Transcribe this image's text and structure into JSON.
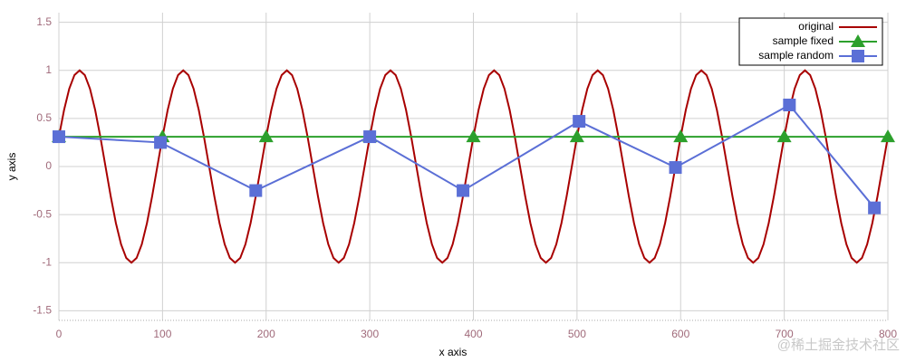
{
  "chart_data": {
    "type": "line",
    "x_label": "x axis",
    "y_label": "y axis",
    "xlim": [
      0,
      800
    ],
    "xticks": [
      0,
      100,
      200,
      300,
      400,
      500,
      600,
      700,
      800
    ],
    "ylim": [
      -1.6,
      1.6
    ],
    "yticks": [
      -1.5,
      -1,
      -0.5,
      0,
      0.5,
      1,
      1.5
    ],
    "grid": true,
    "legend": "top-right",
    "watermark": "@稀土掘金技术社区",
    "series": [
      {
        "name": "original",
        "color": "#a80000",
        "marker": "none",
        "x": [
          0,
          5,
          10,
          15,
          20,
          25,
          30,
          35,
          40,
          45,
          50,
          55,
          60,
          65,
          70,
          75,
          80,
          85,
          90,
          95,
          100,
          105,
          110,
          115,
          120,
          125,
          130,
          135,
          140,
          145,
          150,
          155,
          160,
          165,
          170,
          175,
          180,
          185,
          190,
          195,
          200,
          205,
          210,
          215,
          220,
          225,
          230,
          235,
          240,
          245,
          250,
          255,
          260,
          265,
          270,
          275,
          280,
          285,
          290,
          295,
          300,
          305,
          310,
          315,
          320,
          325,
          330,
          335,
          340,
          345,
          350,
          355,
          360,
          365,
          370,
          375,
          380,
          385,
          390,
          395,
          400,
          405,
          410,
          415,
          420,
          425,
          430,
          435,
          440,
          445,
          450,
          455,
          460,
          465,
          470,
          475,
          480,
          485,
          490,
          495,
          500,
          505,
          510,
          515,
          520,
          525,
          530,
          535,
          540,
          545,
          550,
          555,
          560,
          565,
          570,
          575,
          580,
          585,
          590,
          595,
          600,
          605,
          610,
          615,
          620,
          625,
          630,
          635,
          640,
          645,
          650,
          655,
          660,
          665,
          670,
          675,
          680,
          685,
          690,
          695,
          700,
          705,
          710,
          715,
          720,
          725,
          730,
          735,
          740,
          745,
          750,
          755,
          760,
          765,
          770,
          775,
          780,
          785,
          790,
          795,
          800
        ],
        "values": [
          0.309,
          0.588,
          0.809,
          0.951,
          1,
          0.951,
          0.809,
          0.588,
          0.309,
          0,
          -0.309,
          -0.588,
          -0.809,
          -0.951,
          -1,
          -0.951,
          -0.809,
          -0.588,
          -0.309,
          0,
          0.309,
          0.588,
          0.809,
          0.951,
          1,
          0.951,
          0.809,
          0.588,
          0.309,
          0,
          -0.309,
          -0.588,
          -0.809,
          -0.951,
          -1,
          -0.951,
          -0.809,
          -0.588,
          -0.309,
          0,
          0.309,
          0.588,
          0.809,
          0.951,
          1,
          0.951,
          0.809,
          0.588,
          0.309,
          0,
          -0.309,
          -0.588,
          -0.809,
          -0.951,
          -1,
          -0.951,
          -0.809,
          -0.588,
          -0.309,
          0,
          0.309,
          0.588,
          0.809,
          0.951,
          1,
          0.951,
          0.809,
          0.588,
          0.309,
          0,
          -0.309,
          -0.588,
          -0.809,
          -0.951,
          -1,
          -0.951,
          -0.809,
          -0.588,
          -0.309,
          0,
          0.309,
          0.588,
          0.809,
          0.951,
          1,
          0.951,
          0.809,
          0.588,
          0.309,
          0,
          -0.309,
          -0.588,
          -0.809,
          -0.951,
          -1,
          -0.951,
          -0.809,
          -0.588,
          -0.309,
          0,
          0.309,
          0.588,
          0.809,
          0.951,
          1,
          0.951,
          0.809,
          0.588,
          0.309,
          0,
          -0.309,
          -0.588,
          -0.809,
          -0.951,
          -1,
          -0.951,
          -0.809,
          -0.588,
          -0.309,
          0,
          0.309,
          0.588,
          0.809,
          0.951,
          1,
          0.951,
          0.809,
          0.588,
          0.309,
          0,
          -0.309,
          -0.588,
          -0.809,
          -0.951,
          -1,
          -0.951,
          -0.809,
          -0.588,
          -0.309,
          0,
          0.309,
          0.588,
          0.809,
          0.951,
          1,
          0.951,
          0.809,
          0.588,
          0.309,
          0,
          -0.309,
          -0.588,
          -0.809,
          -0.951,
          -1,
          -0.951,
          -0.809,
          -0.588,
          -0.309,
          0,
          0.309
        ]
      },
      {
        "name": "sample fixed",
        "color": "#2ca02c",
        "marker": "triangle",
        "x": [
          0,
          100,
          200,
          300,
          400,
          500,
          600,
          700,
          800
        ],
        "values": [
          0.31,
          0.31,
          0.31,
          0.31,
          0.31,
          0.31,
          0.31,
          0.31,
          0.31
        ]
      },
      {
        "name": "sample random",
        "color": "#5b6fd6",
        "marker": "square",
        "x": [
          0,
          98,
          190,
          300,
          390,
          502,
          595,
          705,
          787
        ],
        "values": [
          0.31,
          0.25,
          -0.25,
          0.31,
          -0.25,
          0.47,
          -0.01,
          0.64,
          -0.43
        ]
      }
    ]
  }
}
